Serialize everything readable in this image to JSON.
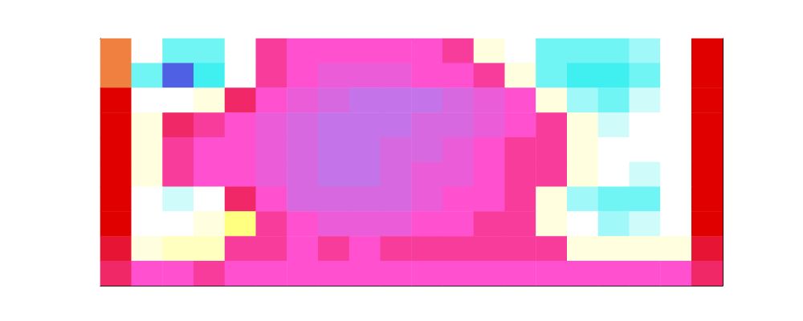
{
  "chart_data": {
    "type": "heatmap",
    "tick_labels": false,
    "zlim": [
      0,
      12
    ],
    "cells": [
      [
        7,
        4,
        2.5,
        2.5,
        4,
        9.5,
        10,
        10,
        10,
        10,
        10,
        9.5,
        4.5,
        4,
        2.5,
        2.5,
        2.5,
        3,
        4,
        8
      ],
      [
        7,
        2.5,
        0.5,
        2,
        4,
        9.5,
        10,
        10.5,
        10.5,
        10.5,
        10,
        10,
        9.5,
        4.5,
        2.5,
        2,
        2,
        2.5,
        4,
        8
      ],
      [
        8,
        4,
        4,
        4.5,
        9,
        10,
        10.5,
        11,
        11.5,
        11.5,
        11.5,
        11,
        10.5,
        10,
        4.5,
        3,
        2.5,
        3.5,
        4,
        8
      ],
      [
        8,
        4.5,
        9,
        9.5,
        10,
        10.5,
        11,
        11.5,
        11.5,
        11.5,
        11,
        11,
        10.5,
        10,
        9.5,
        4.5,
        3.5,
        4,
        4,
        8
      ],
      [
        8,
        4.5,
        9.5,
        10,
        10,
        10.5,
        11,
        11.5,
        11.5,
        11,
        11,
        10.5,
        10,
        9.5,
        9.5,
        4.5,
        4,
        4,
        4,
        8
      ],
      [
        8,
        4.5,
        9.5,
        10,
        10,
        10.5,
        11,
        11.5,
        11.5,
        11,
        10.5,
        10.5,
        10,
        9.5,
        9.5,
        4.5,
        4,
        3.5,
        4,
        8
      ],
      [
        8,
        4,
        3.5,
        4,
        9,
        10,
        11,
        11,
        11,
        11,
        10.5,
        10,
        10,
        9.5,
        4.5,
        3,
        2.5,
        2.5,
        4,
        8
      ],
      [
        8,
        4,
        4,
        4.5,
        6,
        9.5,
        10,
        10.5,
        10.5,
        10.5,
        10,
        10,
        9.5,
        9.5,
        4.5,
        4,
        3,
        3.5,
        4,
        8
      ],
      [
        8.5,
        4.5,
        5,
        5,
        9.5,
        9.5,
        10,
        9.5,
        10,
        9.5,
        9.5,
        9.5,
        9.5,
        9.5,
        9.5,
        4.5,
        4.5,
        4.5,
        4.5,
        8.5
      ],
      [
        9,
        10,
        10,
        9.5,
        10,
        10,
        10,
        10,
        10,
        10,
        10,
        10,
        10,
        10,
        10,
        10,
        10,
        10,
        10,
        9
      ]
    ]
  }
}
